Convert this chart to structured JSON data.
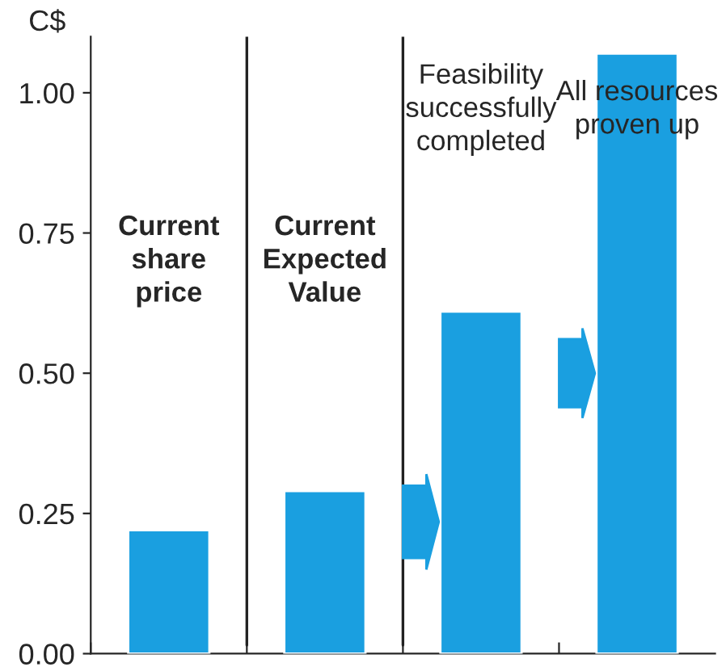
{
  "chart_data": {
    "type": "bar",
    "ylabel": "C$",
    "categories": [
      null,
      null,
      null,
      null
    ],
    "values": [
      0.22,
      0.29,
      0.61,
      1.07
    ],
    "color": "#1a9fe0",
    "ylim": [
      0,
      1.1
    ],
    "yticks": [
      {
        "value": 0,
        "label": "0.00"
      },
      {
        "value": 0.25,
        "label": "0.25"
      },
      {
        "value": 0.5,
        "label": "0.50"
      },
      {
        "value": 0.75,
        "label": "0.75"
      },
      {
        "value": 1,
        "label": "1.00"
      }
    ],
    "grid": false,
    "annotations": [
      "Current\nshare\nprice",
      "Current\nExpected\nValue",
      "Feasibility\nsuccessfully\ncompleted",
      "All resources\nproven up"
    ]
  }
}
